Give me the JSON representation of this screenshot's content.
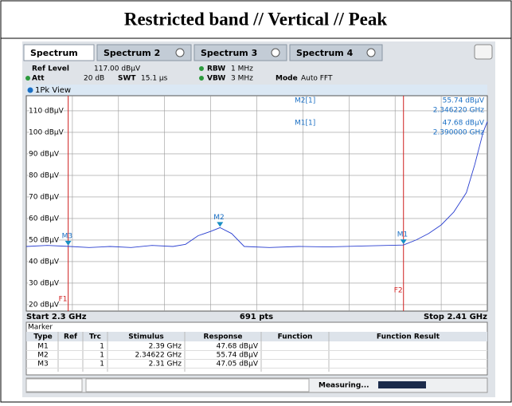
{
  "header": {
    "title": "Restricted band // Vertical // Peak"
  },
  "tabs": [
    "Spectrum",
    "Spectrum 2",
    "Spectrum 3",
    "Spectrum 4"
  ],
  "settings": {
    "ref_level": "Ref Level",
    "ref_level_value": "117.00 dBµV",
    "rbw": "RBW",
    "rbw_value": "1 MHz",
    "att": "Att",
    "att_value": "20 dB",
    "swt": "SWT",
    "swt_value": "15.1 µs",
    "vbw": "VBW",
    "vbw_value": "3 MHz",
    "mode": "Mode",
    "mode_value": "Auto FFT"
  },
  "view_label": "1Pk View",
  "plot": {
    "xlim": [
      2.3,
      2.41
    ],
    "ylim": [
      17,
      117
    ],
    "yticks": [
      {
        "value": 110,
        "label": "110 dBµV"
      },
      {
        "value": 100,
        "label": "100 dBµV"
      },
      {
        "value": 90,
        "label": "90 dBµV"
      },
      {
        "value": 80,
        "label": "80 dBµV"
      },
      {
        "value": 70,
        "label": "70 dBµV"
      },
      {
        "value": 60,
        "label": "60 dBµV"
      },
      {
        "value": 50,
        "label": "50 dBµV"
      },
      {
        "value": 40,
        "label": "40 dBµV"
      },
      {
        "value": 30,
        "label": "30 dBµV"
      },
      {
        "value": 20,
        "label": "20 dBµV"
      }
    ],
    "trace": {
      "x": [
        2.3,
        2.305,
        2.31,
        2.315,
        2.32,
        2.325,
        2.33,
        2.335,
        2.338,
        2.341,
        2.344,
        2.34622,
        2.349,
        2.352,
        2.358,
        2.365,
        2.372,
        2.38,
        2.386,
        2.39,
        2.393,
        2.396,
        2.399,
        2.402,
        2.405,
        2.407,
        2.409,
        2.41
      ],
      "values": [
        47,
        47.5,
        47.05,
        46.5,
        47,
        46.5,
        47.5,
        47,
        48,
        52,
        54,
        55.74,
        53,
        47,
        46.5,
        47,
        46.8,
        47.2,
        47.5,
        47.68,
        50,
        53,
        57,
        63,
        72,
        85,
        100,
        105
      ]
    },
    "lines": [
      {
        "label": "F1",
        "x": 2.31
      },
      {
        "label": "F2",
        "x": 2.39
      }
    ],
    "markers": [
      {
        "label": "M1",
        "x": 2.39,
        "y": 47.68
      },
      {
        "label": "M2",
        "x": 2.34622,
        "y": 55.74
      },
      {
        "label": "M3",
        "x": 2.31,
        "y": 47.05
      }
    ],
    "readout": [
      {
        "name": "M2[1]",
        "level": "55.74 dBµV",
        "freq": "2.346220 GHz"
      },
      {
        "name": "M1[1]",
        "level": "47.68 dBµV",
        "freq": "2.390000 GHz"
      }
    ],
    "start": "Start 2.3 GHz",
    "points": "691 pts",
    "stop": "Stop 2.41 GHz"
  },
  "marker_table": {
    "title": "Marker",
    "columns": [
      "Type",
      "Ref",
      "Trc",
      "Stimulus",
      "Response",
      "Function",
      "Function Result"
    ],
    "rows": [
      [
        "M1",
        "1",
        "2.39 GHz",
        "47.68 dBµV"
      ],
      [
        "M2",
        "1",
        "2.34622 GHz",
        "55.74 dBµV"
      ],
      [
        "M3",
        "1",
        "2.31 GHz",
        "47.05 dBµV"
      ]
    ]
  },
  "status": "Measuring..."
}
